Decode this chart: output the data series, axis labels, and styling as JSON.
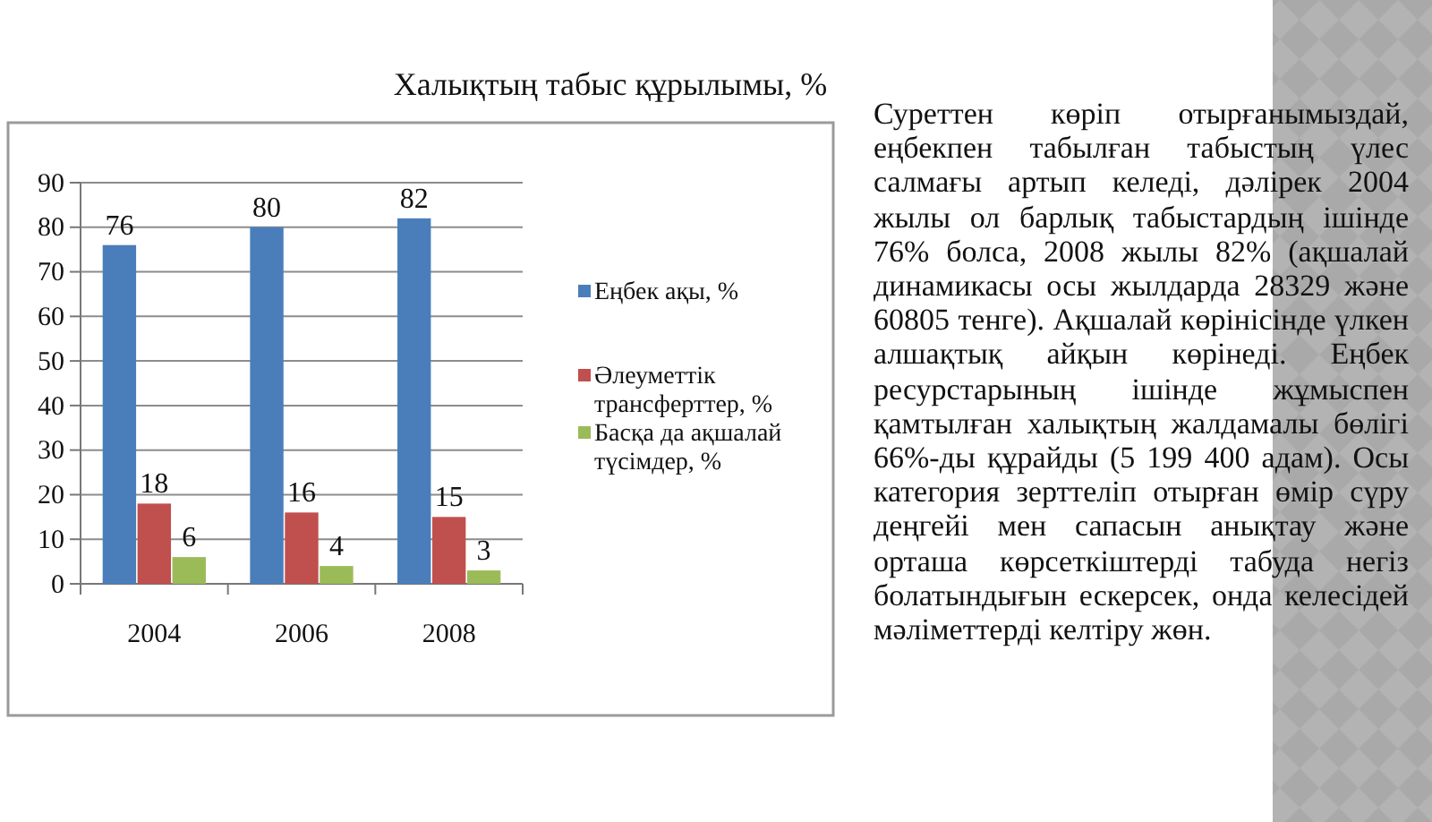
{
  "chart_data": {
    "type": "bar",
    "title": "Халықтың табыс құрылымы, %",
    "categories": [
      "2004",
      "2006",
      "2008"
    ],
    "series": [
      {
        "name": "Еңбек ақы, %",
        "color": "#4a7ebb",
        "values": [
          76,
          80,
          82
        ]
      },
      {
        "name": "Әлеуметтік трансферттер, %",
        "color": "#c0504d",
        "values": [
          18,
          16,
          15
        ]
      },
      {
        "name": "Басқа да ақшалай түсімдер, %",
        "color": "#9bbb59",
        "values": [
          6,
          4,
          3
        ]
      }
    ],
    "ylim": [
      0,
      90
    ],
    "yticks": [
      0,
      10,
      20,
      30,
      40,
      50,
      60,
      70,
      80,
      90
    ],
    "grid": "y",
    "legend": "right",
    "data_labels": true,
    "annotations": [
      "Суреттен көріп отырғанымыздай, еңбекпен табылған табыстың үлес салмағы артып келеді, дәлірек 2004 жылы ол барлық табыстардың ішінде 76% болса, 2008 жылы 82% (ақшалай динамикасы осы жылдарда 28329 және 60805 тенге). Ақшалай көрінісінде үлкен алшақтық айқын көрінеді. Еңбек ресурстарының ішінде жұмыспен қамтылған халықтың жалдамалы бөлігі 66%-ды құрайды (5 199 400 адам). Осы категория зерттеліп отырған өмір сүру деңгейі мен сапасын анықтау және орташа көрсеткіштерді табуда негіз болатындығын ескерсек, онда келесідей мәліметтерді келтіру жөн."
    ]
  }
}
